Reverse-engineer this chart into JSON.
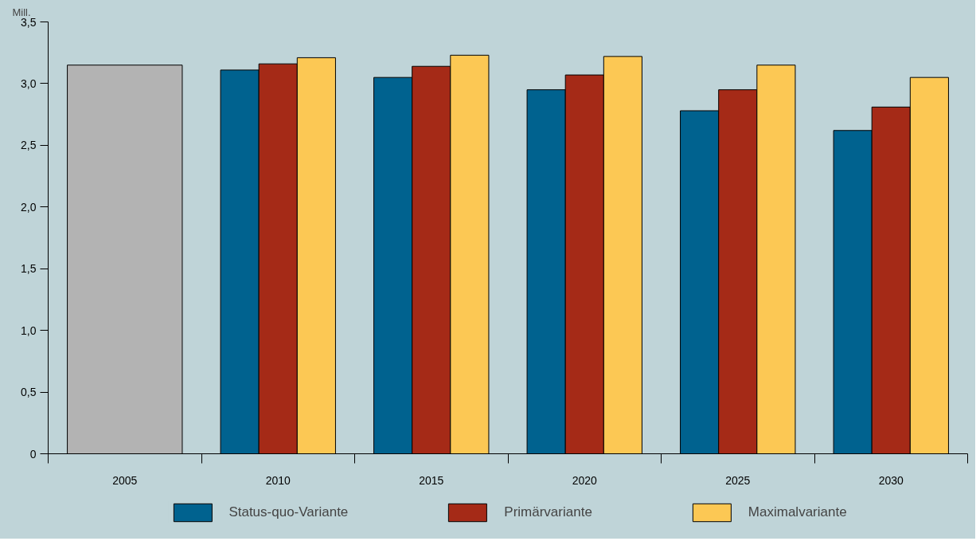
{
  "chart_data": {
    "type": "bar",
    "ylabel": "Mill.",
    "categories": [
      "2005",
      "2010",
      "2015",
      "2020",
      "2025",
      "2030"
    ],
    "series": [
      {
        "color": "#b3b3b3",
        "values": [
          3.15,
          null,
          null,
          null,
          null,
          null
        ]
      },
      {
        "name": "Status-quo-Variante",
        "color": "#00628f",
        "values": [
          null,
          3.11,
          3.05,
          2.95,
          2.78,
          2.62
        ]
      },
      {
        "name": "Primärvariante",
        "color": "#a52a17",
        "values": [
          null,
          3.16,
          3.14,
          3.07,
          2.95,
          2.81
        ]
      },
      {
        "name": "Maximalvariante",
        "color": "#fcc854",
        "values": [
          null,
          3.21,
          3.23,
          3.22,
          3.15,
          3.05
        ]
      }
    ],
    "ylim": [
      0,
      3.5
    ],
    "yticks": [
      0,
      {
        "value": 0.5,
        "label": "0,5"
      },
      {
        "value": 1,
        "label": "1,0"
      },
      {
        "value": 1.5,
        "label": "1,5"
      },
      {
        "value": 2,
        "label": "2,0"
      },
      {
        "value": 2.5,
        "label": "2,5"
      },
      {
        "value": 3,
        "label": "3,0"
      },
      {
        "value": 3.5,
        "label": "3,5"
      }
    ],
    "grid": false,
    "legend": "bottom"
  }
}
